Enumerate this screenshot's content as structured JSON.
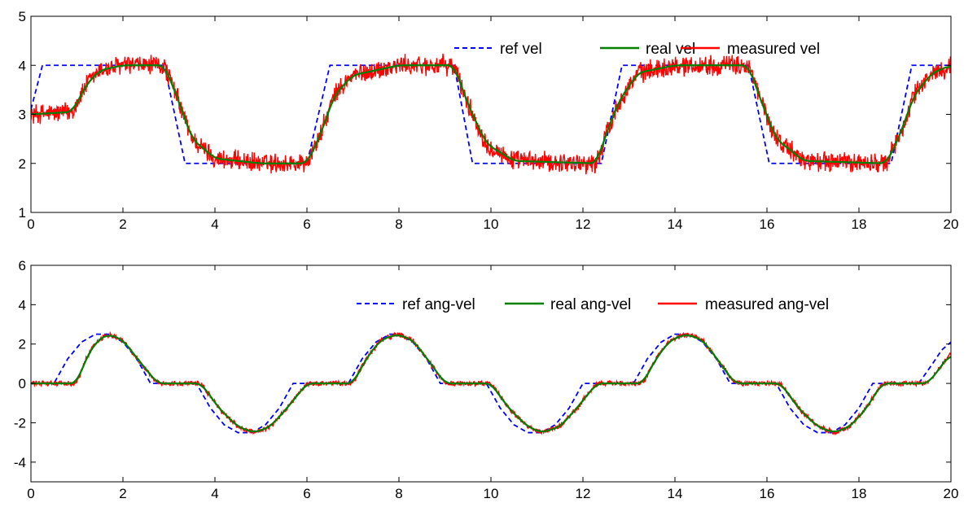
{
  "chart_data": [
    {
      "type": "line",
      "title": "",
      "xlabel": "",
      "ylabel": "",
      "xlim": [
        0,
        20
      ],
      "ylim": [
        1,
        5
      ],
      "xticks": [
        "0",
        "2",
        "4",
        "6",
        "8",
        "10",
        "12",
        "14",
        "16",
        "18",
        "20"
      ],
      "yticks": [
        "1",
        "2",
        "3",
        "4",
        "5"
      ],
      "legend_position": "top-right",
      "series": [
        {
          "name": "ref vel",
          "color": "#0000ff",
          "style": "dashed",
          "x": [
            0,
            0.25,
            2.9,
            3.35,
            6.0,
            6.5,
            9.2,
            9.6,
            12.4,
            12.85,
            15.6,
            16.05,
            18.7,
            19.15,
            20
          ],
          "y": [
            3.1,
            4,
            4,
            2,
            2,
            4,
            4,
            2,
            2,
            4,
            4,
            2,
            2,
            4,
            4
          ]
        },
        {
          "name": "real vel",
          "color": "#008000",
          "style": "solid",
          "x": [
            0,
            0.9,
            1.2,
            1.5,
            2.0,
            2.9,
            3.2,
            3.5,
            4.0,
            5.0,
            6.0,
            6.3,
            6.6,
            7.0,
            8.0,
            9.2,
            9.5,
            9.9,
            10.5,
            12.3,
            12.5,
            12.8,
            13.2,
            14.0,
            15.6,
            15.9,
            16.2,
            16.8,
            18.6,
            18.9,
            19.2,
            19.6,
            20.0
          ],
          "y": [
            3.0,
            3.05,
            3.6,
            3.9,
            4.0,
            4.0,
            3.3,
            2.5,
            2.1,
            2.0,
            2.0,
            2.6,
            3.4,
            3.8,
            4.0,
            4.0,
            3.2,
            2.4,
            2.05,
            2.0,
            2.6,
            3.3,
            3.85,
            4.0,
            4.0,
            3.2,
            2.5,
            2.05,
            2.0,
            2.6,
            3.4,
            3.85,
            4.0
          ]
        },
        {
          "name": "measured vel",
          "color": "#ff0000",
          "style": "solid",
          "x": [
            0,
            0.9,
            1.2,
            1.5,
            2.0,
            2.9,
            3.2,
            3.5,
            4.0,
            5.0,
            6.0,
            6.3,
            6.6,
            7.0,
            8.0,
            9.2,
            9.5,
            9.9,
            10.5,
            12.3,
            12.5,
            12.8,
            13.2,
            14.0,
            15.6,
            15.9,
            16.2,
            16.8,
            18.6,
            18.9,
            19.2,
            19.6,
            20.0
          ],
          "y": [
            3.0,
            3.05,
            3.6,
            3.9,
            4.0,
            4.0,
            3.3,
            2.5,
            2.1,
            2.0,
            2.0,
            2.6,
            3.4,
            3.8,
            4.0,
            4.0,
            3.2,
            2.4,
            2.05,
            2.0,
            2.6,
            3.3,
            3.85,
            4.0,
            4.0,
            3.2,
            2.5,
            2.05,
            2.0,
            2.6,
            3.4,
            3.85,
            4.0
          ],
          "noise_amplitude": 0.2
        }
      ]
    },
    {
      "type": "line",
      "title": "",
      "xlabel": "",
      "ylabel": "",
      "xlim": [
        0,
        20
      ],
      "ylim": [
        -5,
        6
      ],
      "xticks": [
        "0",
        "2",
        "4",
        "6",
        "8",
        "10",
        "12",
        "14",
        "16",
        "18",
        "20"
      ],
      "yticks": [
        "-4",
        "-2",
        "0",
        "2",
        "4",
        "6"
      ],
      "legend_position": "top-right",
      "series": [
        {
          "name": "ref ang-vel",
          "color": "#0000ff",
          "style": "dashed",
          "x": [
            0,
            0.5,
            0.8,
            1.1,
            1.4,
            1.7,
            2.0,
            2.3,
            2.6,
            3.6,
            3.9,
            4.2,
            4.5,
            4.8,
            5.1,
            5.4,
            5.7,
            6.9,
            7.2,
            7.5,
            7.8,
            8.0,
            8.3,
            8.6,
            8.9,
            9.9,
            10.2,
            10.5,
            10.8,
            11.1,
            11.4,
            11.7,
            12.0,
            13.1,
            13.4,
            13.7,
            14.0,
            14.3,
            14.6,
            14.9,
            15.2,
            16.2,
            16.5,
            16.8,
            17.1,
            17.4,
            17.7,
            18.0,
            18.3,
            19.3,
            19.6,
            19.8,
            20.0
          ],
          "y": [
            0,
            0,
            1.25,
            2.1,
            2.5,
            2.5,
            2.1,
            1.25,
            0,
            0,
            -1.25,
            -2.1,
            -2.5,
            -2.5,
            -2.1,
            -1.25,
            0,
            0,
            1.25,
            2.1,
            2.5,
            2.5,
            2.1,
            1.25,
            0,
            0,
            -1.25,
            -2.1,
            -2.5,
            -2.5,
            -2.1,
            -1.25,
            0,
            0,
            1.25,
            2.1,
            2.5,
            2.5,
            2.1,
            1.25,
            0,
            0,
            -1.25,
            -2.1,
            -2.5,
            -2.5,
            -2.1,
            -1.25,
            0,
            0,
            1.0,
            1.7,
            2.1
          ]
        },
        {
          "name": "real ang-vel",
          "color": "#008000",
          "style": "solid",
          "x": [
            0,
            1.0,
            1.2,
            1.45,
            1.7,
            2.0,
            2.3,
            2.75,
            3.7,
            4.1,
            4.5,
            4.85,
            5.2,
            5.55,
            6.0,
            7.0,
            7.3,
            7.6,
            7.95,
            8.3,
            8.6,
            9.0,
            10.0,
            10.4,
            10.8,
            11.1,
            11.5,
            11.85,
            12.3,
            13.3,
            13.6,
            13.9,
            14.25,
            14.6,
            14.9,
            15.3,
            16.3,
            16.7,
            17.1,
            17.45,
            17.8,
            18.15,
            18.5,
            19.5,
            19.8,
            20.0
          ],
          "y": [
            0,
            0,
            1.3,
            2.2,
            2.5,
            2.2,
            1.3,
            0,
            0,
            -1.3,
            -2.2,
            -2.5,
            -2.2,
            -1.3,
            0,
            0,
            1.3,
            2.2,
            2.5,
            2.2,
            1.3,
            0,
            0,
            -1.3,
            -2.2,
            -2.5,
            -2.2,
            -1.3,
            0,
            0,
            1.3,
            2.2,
            2.5,
            2.2,
            1.3,
            0,
            0,
            -1.3,
            -2.2,
            -2.5,
            -2.2,
            -1.3,
            0,
            0,
            0.9,
            1.6
          ]
        },
        {
          "name": "measured ang-vel",
          "color": "#ff0000",
          "style": "solid",
          "x": [
            0,
            1.0,
            1.2,
            1.45,
            1.7,
            2.0,
            2.3,
            2.75,
            3.7,
            4.1,
            4.5,
            4.85,
            5.2,
            5.55,
            6.0,
            7.0,
            7.3,
            7.6,
            7.95,
            8.3,
            8.6,
            9.0,
            10.0,
            10.4,
            10.8,
            11.1,
            11.5,
            11.85,
            12.3,
            13.3,
            13.6,
            13.9,
            14.25,
            14.6,
            14.9,
            15.3,
            16.3,
            16.7,
            17.1,
            17.45,
            17.8,
            18.15,
            18.5,
            19.5,
            19.8,
            20.0
          ],
          "y": [
            0,
            0,
            1.3,
            2.2,
            2.5,
            2.2,
            1.3,
            0,
            0,
            -1.3,
            -2.2,
            -2.5,
            -2.2,
            -1.3,
            0,
            0,
            1.3,
            2.2,
            2.5,
            2.2,
            1.3,
            0,
            0,
            -1.3,
            -2.2,
            -2.5,
            -2.2,
            -1.3,
            0,
            0,
            1.3,
            2.2,
            2.5,
            2.2,
            1.3,
            0,
            0,
            -1.3,
            -2.2,
            -2.5,
            -2.2,
            -1.3,
            0,
            0,
            0.9,
            1.6
          ],
          "noise_amplitude": 0.12
        }
      ]
    }
  ]
}
